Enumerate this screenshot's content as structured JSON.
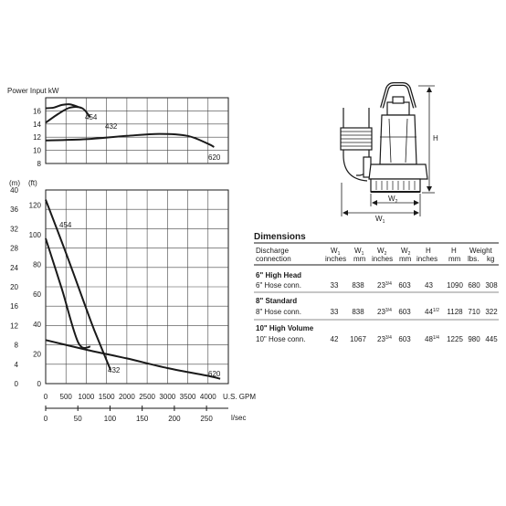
{
  "chart_data": [
    {
      "type": "line",
      "title": "Power Input kW",
      "xlabel": "U.S. GPM",
      "ylabel": "Power Input kW",
      "xlim": [
        0,
        4500
      ],
      "ylim": [
        8,
        18
      ],
      "yticks": [
        "8",
        "10",
        "12",
        "14",
        "16"
      ],
      "grid": true,
      "series": [
        {
          "name": "454",
          "x": [
            0,
            200,
            400,
            600,
            800
          ],
          "y": [
            16.4,
            16.5,
            16.9,
            17.0,
            16.6
          ]
        },
        {
          "name": "432",
          "x": [
            0,
            300,
            600,
            900,
            1100
          ],
          "y": [
            14.2,
            15.5,
            16.5,
            16.4,
            15.0
          ]
        },
        {
          "name": "620",
          "x": [
            0,
            1000,
            2000,
            2800,
            3500,
            4000,
            4150
          ],
          "y": [
            11.5,
            11.7,
            12.2,
            12.5,
            12.2,
            11.0,
            10.5
          ]
        }
      ]
    },
    {
      "type": "line",
      "ylabel_left": "(m)",
      "ylabel_right": "(ft)",
      "xlabel": "U.S. GPM",
      "xlabel2": "l/sec",
      "xlim": [
        0,
        4500
      ],
      "ylim_m": [
        0,
        40
      ],
      "ylim_ft": [
        0,
        130
      ],
      "xticks": [
        "0",
        "500",
        "1000",
        "1500",
        "2000",
        "2500",
        "3000",
        "3500",
        "4000"
      ],
      "xticks2": [
        "0",
        "50",
        "100",
        "150",
        "200",
        "250"
      ],
      "yticks_m": [
        "0",
        "4",
        "8",
        "12",
        "16",
        "20",
        "24",
        "28",
        "32",
        "36",
        "40"
      ],
      "yticks_ft": [
        "0",
        "20",
        "40",
        "60",
        "80",
        "100",
        "120"
      ],
      "grid": true,
      "series": [
        {
          "name": "454",
          "x": [
            0,
            500,
            1000,
            1200,
            1600
          ],
          "y_m": [
            38.0,
            27.0,
            15.5,
            11.0,
            2.8
          ]
        },
        {
          "name": "432",
          "x": [
            0,
            400,
            800,
            1100
          ],
          "y_m": [
            30.0,
            19.5,
            8.5,
            7.6
          ]
        },
        {
          "name": "620",
          "x": [
            0,
            1000,
            2000,
            3000,
            4000,
            4300
          ],
          "y_m": [
            9.0,
            7.0,
            5.2,
            3.2,
            1.6,
            1.0
          ]
        }
      ]
    }
  ],
  "drawing": {
    "dim_h": "H",
    "dim_w1": "W",
    "dim_w1_sub": "1",
    "dim_w2": "W",
    "dim_w2_sub": "2"
  },
  "table": {
    "title": "Dimensions",
    "headers": {
      "discharge": [
        "Discharge",
        "connection"
      ],
      "w1_in": [
        "W",
        "1",
        "inches"
      ],
      "w1_mm": [
        "W",
        "1",
        "mm"
      ],
      "w2_in": [
        "W",
        "2",
        "inches"
      ],
      "w2_mm": [
        "W",
        "2",
        "mm"
      ],
      "h_in": [
        "H",
        "inches"
      ],
      "h_mm": [
        "H",
        "mm"
      ],
      "weight": [
        "Weight",
        "lbs.",
        "kg"
      ]
    },
    "rows": [
      {
        "name": "6\" High Head",
        "conn": "6\" Hose conn.",
        "w1_in": "33",
        "w1_mm": "838",
        "w2_in": "23",
        "w2_in_frac": "3/4",
        "w2_mm": "603",
        "h_in": "43",
        "h_in_frac": "",
        "h_mm": "1090",
        "lbs": "680",
        "kg": "308"
      },
      {
        "name": "8\" Standard",
        "conn": "8\" Hose conn.",
        "w1_in": "33",
        "w1_mm": "838",
        "w2_in": "23",
        "w2_in_frac": "3/4",
        "w2_mm": "603",
        "h_in": "44",
        "h_in_frac": "1/2",
        "h_mm": "1128",
        "lbs": "710",
        "kg": "322"
      },
      {
        "name": "10\" High Volume",
        "conn": "10\" Hose conn.",
        "w1_in": "42",
        "w1_mm": "1067",
        "w2_in": "23",
        "w2_in_frac": "3/4",
        "w2_mm": "603",
        "h_in": "48",
        "h_in_frac": "1/4",
        "h_mm": "1225",
        "lbs": "980",
        "kg": "445"
      }
    ]
  },
  "colors": {
    "ink": "#1a1a1a",
    "grid": "#444444"
  }
}
